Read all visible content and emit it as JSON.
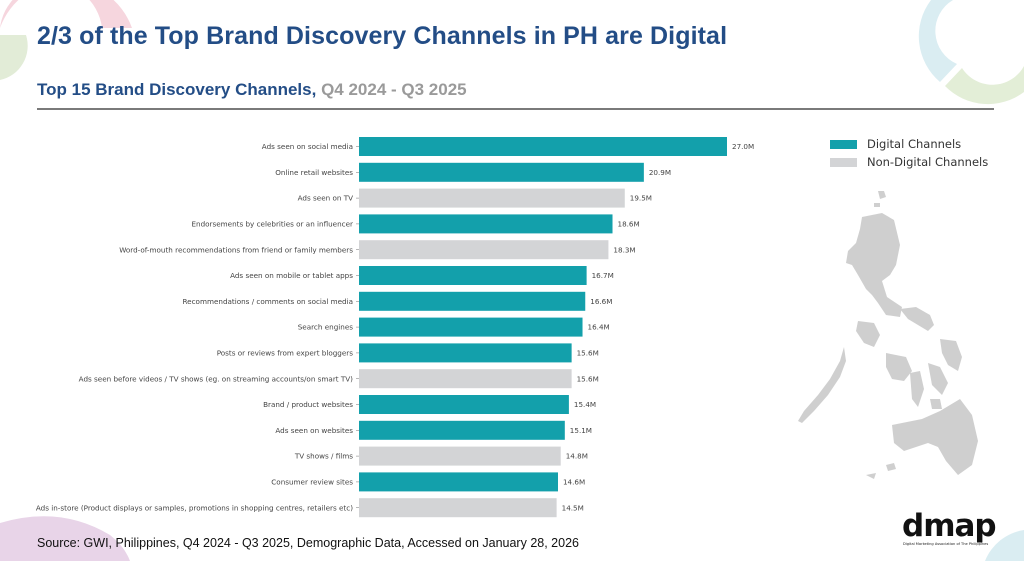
{
  "header": {
    "title": "2/3 of the Top Brand Discovery Channels in PH are Digital",
    "subtitle_main": "Top 15 Brand Discovery Channels,",
    "subtitle_period": "Q4 2024 - Q3 2025"
  },
  "legend": {
    "items": [
      {
        "label": "Digital Channels",
        "color": "#13a0ab"
      },
      {
        "label": "Non-Digital Channels",
        "color": "#d3d4d6"
      }
    ]
  },
  "chart_data": {
    "type": "bar",
    "orientation": "horizontal",
    "title": "Top 15 Brand Discovery Channels, Q4 2024 - Q3 2025",
    "xlabel": "",
    "ylabel": "",
    "unit": "M",
    "xlim": [
      0,
      27.0
    ],
    "grid": false,
    "legend_position": "top-right",
    "categories": [
      "Ads seen on social media",
      "Online retail websites",
      "Ads seen on TV",
      "Endorsements by celebrities or an influencer",
      "Word-of-mouth recommendations from friend or family members",
      "Ads seen on mobile or tablet apps",
      "Recommendations / comments on social media",
      "Search engines",
      "Posts or reviews from expert bloggers",
      "Ads seen before videos / TV shows (eg. on streaming accounts/on smart TV)",
      "Brand / product websites",
      "Ads seen on websites",
      "TV shows / films",
      "Consumer review sites",
      "Ads in-store (Product displays or samples, promotions in shopping centres, retailers etc)"
    ],
    "values": [
      27.0,
      20.9,
      19.5,
      18.6,
      18.3,
      16.7,
      16.6,
      16.4,
      15.6,
      15.6,
      15.4,
      15.1,
      14.8,
      14.6,
      14.5
    ],
    "value_labels": [
      "27.0M",
      "20.9M",
      "19.5M",
      "18.6M",
      "18.3M",
      "16.7M",
      "16.6M",
      "16.4M",
      "15.6M",
      "15.6M",
      "15.4M",
      "15.1M",
      "14.8M",
      "14.6M",
      "14.5M"
    ],
    "groups": [
      "Digital Channels",
      "Digital Channels",
      "Non-Digital Channels",
      "Digital Channels",
      "Non-Digital Channels",
      "Digital Channels",
      "Digital Channels",
      "Digital Channels",
      "Digital Channels",
      "Non-Digital Channels",
      "Digital Channels",
      "Digital Channels",
      "Non-Digital Channels",
      "Digital Channels",
      "Non-Digital Channels"
    ],
    "series": [
      {
        "name": "Digital Channels",
        "color": "#13a0ab"
      },
      {
        "name": "Non-Digital Channels",
        "color": "#d3d4d6"
      }
    ]
  },
  "footer": {
    "source": "Source: GWI, Philippines, Q4 2024 - Q3 2025, Demographic Data, Accessed on January 28, 2026",
    "logo_text": "dmap",
    "logo_tagline": "Digital Marketing Association of The Philippines"
  }
}
